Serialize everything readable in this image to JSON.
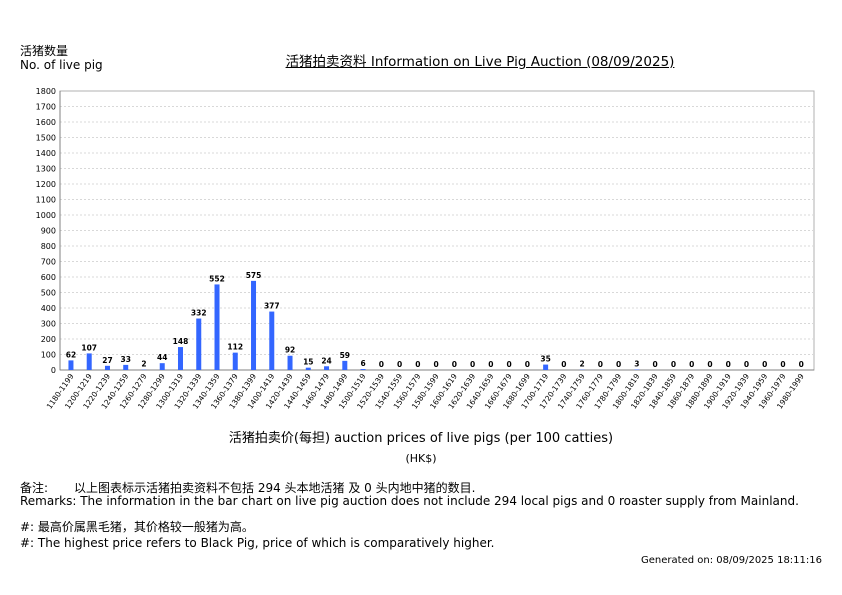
{
  "chart_data": {
    "type": "bar",
    "title": "活猪拍卖资料 Information on Live Pig Auction (08/09/2025)",
    "ylabel_zh": "活猪数量",
    "ylabel_en": "No. of live pig",
    "xlabel": "活猪拍卖价(每担) auction prices of live pigs (per 100 catties)",
    "unit": "(HK$)",
    "ylim": [
      0,
      1800
    ],
    "yticks": [
      0,
      100,
      200,
      300,
      400,
      500,
      600,
      700,
      800,
      900,
      1000,
      1100,
      1200,
      1300,
      1400,
      1500,
      1600,
      1700,
      1800
    ],
    "grid": true,
    "bar_color": "#3366ff",
    "categories": [
      "1180-1199",
      "1200-1219",
      "1220-1239",
      "1240-1259",
      "1260-1279",
      "1280-1299",
      "1300-1319",
      "1320-1339",
      "1340-1359",
      "1360-1379",
      "1380-1399",
      "1400-1419",
      "1420-1439",
      "1440-1459",
      "1460-1479",
      "1480-1499",
      "1500-1519",
      "1520-1539",
      "1540-1559",
      "1560-1579",
      "1580-1599",
      "1600-1619",
      "1620-1639",
      "1640-1659",
      "1660-1679",
      "1680-1699",
      "1700-1719",
      "1720-1739",
      "1740-1759",
      "1760-1779",
      "1780-1799",
      "1800-1819",
      "1820-1839",
      "1840-1859",
      "1860-1879",
      "1880-1899",
      "1900-1919",
      "1920-1939",
      "1940-1959",
      "1960-1979",
      "1980-1999"
    ],
    "values": [
      62,
      107,
      27,
      33,
      2,
      44,
      148,
      332,
      552,
      112,
      575,
      377,
      92,
      15,
      24,
      59,
      6,
      0,
      0,
      0,
      0,
      0,
      0,
      0,
      0,
      0,
      35,
      0,
      2,
      0,
      0,
      3,
      0,
      0,
      0,
      0,
      0,
      0,
      0,
      0,
      0
    ]
  },
  "notes": {
    "zh_label": "备注:",
    "zh_text": "以上图表标示活猪拍卖资料不包括 294 头本地活猪 及 0 头内地中猪的数目.",
    "en": "Remarks: The information in the bar chart on live pig auction does not include 294 local pigs and 0 roaster supply from Mainland.",
    "hash_zh": "#: 最高价属黑毛猪，其价格较一般猪为高。",
    "hash_en": "#: The highest price refers to Black Pig, price of which is comparatively higher."
  },
  "generated": "Generated on: 08/09/2025 18:11:16"
}
